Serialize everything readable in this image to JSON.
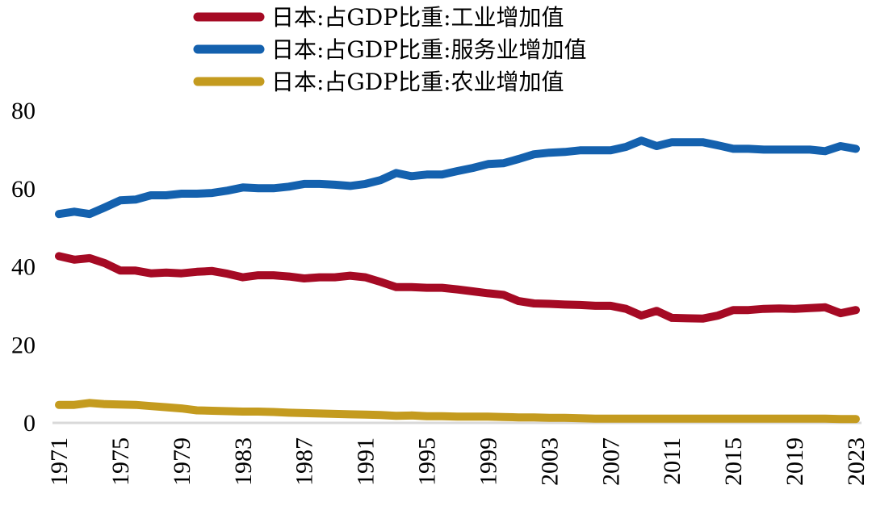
{
  "chart_data": {
    "type": "line",
    "title": "",
    "xlabel": "",
    "ylabel": "",
    "ylim": [
      0,
      80
    ],
    "yticks": [
      0,
      20,
      40,
      60,
      80
    ],
    "ytick_labels": [
      "0",
      "20",
      "40",
      "60",
      "80"
    ],
    "xlim": [
      1971,
      2023
    ],
    "xticks": [
      1971,
      1975,
      1979,
      1983,
      1987,
      1991,
      1995,
      1999,
      2003,
      2007,
      2011,
      2015,
      2019,
      2023
    ],
    "xtick_labels": [
      "1971",
      "1975",
      "1979",
      "1983",
      "1987",
      "1991",
      "1995",
      "1999",
      "2003",
      "2007",
      "2011",
      "2015",
      "2019",
      "2023"
    ],
    "grid": false,
    "legend_position": "top-center",
    "x": [
      1971,
      1972,
      1973,
      1974,
      1975,
      1976,
      1977,
      1978,
      1979,
      1980,
      1981,
      1982,
      1983,
      1984,
      1985,
      1986,
      1987,
      1988,
      1989,
      1990,
      1991,
      1992,
      1993,
      1994,
      1995,
      1996,
      1997,
      1998,
      1999,
      2000,
      2001,
      2002,
      2003,
      2004,
      2005,
      2006,
      2007,
      2008,
      2009,
      2010,
      2011,
      2012,
      2013,
      2014,
      2015,
      2016,
      2017,
      2018,
      2019,
      2020,
      2021,
      2022,
      2023
    ],
    "series": [
      {
        "name": "日本:占GDP比重:工业增加值",
        "color": "#A50A24",
        "values": [
          42.7,
          41.8,
          42.2,
          40.9,
          39.0,
          39.0,
          38.3,
          38.5,
          38.3,
          38.7,
          38.9,
          38.2,
          37.3,
          37.8,
          37.8,
          37.5,
          37.0,
          37.3,
          37.3,
          37.7,
          37.3,
          36.1,
          34.8,
          34.8,
          34.6,
          34.6,
          34.2,
          33.7,
          33.2,
          32.8,
          31.2,
          30.6,
          30.5,
          30.3,
          30.2,
          30.0,
          30.0,
          29.2,
          27.5,
          28.7,
          26.9,
          26.8,
          26.7,
          27.5,
          28.9,
          28.9,
          29.2,
          29.3,
          29.2,
          29.4,
          29.6,
          28.1,
          28.9
        ]
      },
      {
        "name": "日本:占GDP比重:服务业增加值",
        "color": "#1461AE",
        "values": [
          53.5,
          54.1,
          53.5,
          55.2,
          57.0,
          57.2,
          58.3,
          58.3,
          58.7,
          58.7,
          58.9,
          59.5,
          60.3,
          60.1,
          60.1,
          60.5,
          61.2,
          61.2,
          61.0,
          60.7,
          61.2,
          62.2,
          64.0,
          63.2,
          63.6,
          63.6,
          64.5,
          65.3,
          66.3,
          66.5,
          67.6,
          68.8,
          69.2,
          69.4,
          69.8,
          69.8,
          69.8,
          70.7,
          72.3,
          70.9,
          71.9,
          71.9,
          71.9,
          71.1,
          70.2,
          70.2,
          70.0,
          70.0,
          70.0,
          70.0,
          69.6,
          70.9,
          70.2
        ]
      },
      {
        "name": "日本:占GDP比重:农业增加值",
        "color": "#C49B1F",
        "values": [
          4.6,
          4.6,
          5.1,
          4.8,
          4.7,
          4.6,
          4.3,
          4.0,
          3.7,
          3.2,
          3.1,
          3.0,
          2.9,
          2.9,
          2.8,
          2.6,
          2.5,
          2.4,
          2.3,
          2.2,
          2.1,
          2.0,
          1.8,
          1.9,
          1.7,
          1.7,
          1.6,
          1.6,
          1.6,
          1.5,
          1.4,
          1.4,
          1.3,
          1.3,
          1.2,
          1.1,
          1.1,
          1.1,
          1.1,
          1.1,
          1.1,
          1.1,
          1.1,
          1.1,
          1.1,
          1.1,
          1.1,
          1.1,
          1.1,
          1.1,
          1.1,
          1.0,
          1.0
        ]
      }
    ]
  }
}
